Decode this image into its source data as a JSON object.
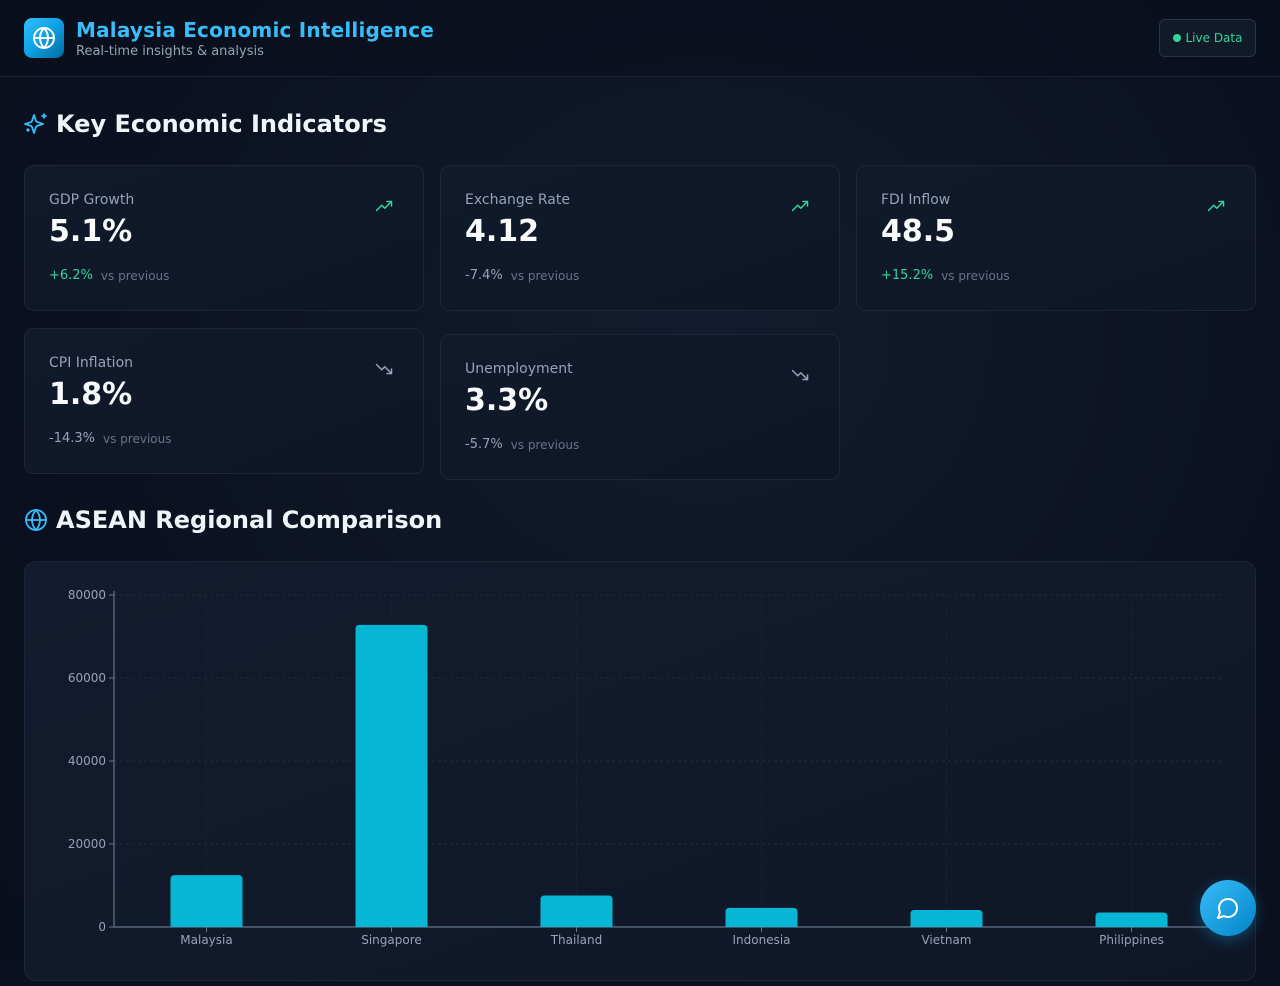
{
  "header": {
    "title": "Malaysia Economic Intelligence",
    "subtitle": "Real-time insights & analysis",
    "badge": "Live Data",
    "logo_icon": "globe-icon"
  },
  "indicators": {
    "title": "Key Economic Indicators",
    "icon": "sparkles-icon",
    "vs_label": "vs previous",
    "cards": [
      {
        "label": "GDP Growth",
        "value": "5.1%",
        "change": "+6.2%",
        "trend": "up"
      },
      {
        "label": "Exchange Rate",
        "value": "4.12",
        "change": "-7.4%",
        "trend": "up"
      },
      {
        "label": "FDI Inflow",
        "value": "48.5",
        "change": "+15.2%",
        "trend": "up"
      },
      {
        "label": "CPI Inflation",
        "value": "1.8%",
        "change": "-14.3%",
        "trend": "down"
      },
      {
        "label": "Unemployment",
        "value": "3.3%",
        "change": "-5.7%",
        "trend": "down"
      }
    ]
  },
  "comparison": {
    "title": "ASEAN Regional Comparison",
    "icon": "globe-icon"
  },
  "colors": {
    "accent": "#38bdf8",
    "bar": "#06b6d4",
    "positive": "#34d399",
    "neutral": "#94a3b8"
  },
  "chart_data": {
    "type": "bar",
    "categories": [
      "Malaysia",
      "Singapore",
      "Thailand",
      "Indonesia",
      "Vietnam",
      "Philippines"
    ],
    "values": [
      12500,
      72800,
      7600,
      4600,
      4100,
      3500
    ],
    "ylim": [
      0,
      80000
    ],
    "yticks": [
      0,
      20000,
      40000,
      60000,
      80000
    ],
    "grid": true
  },
  "chat_button": {
    "icon": "chat-bubble-icon"
  }
}
